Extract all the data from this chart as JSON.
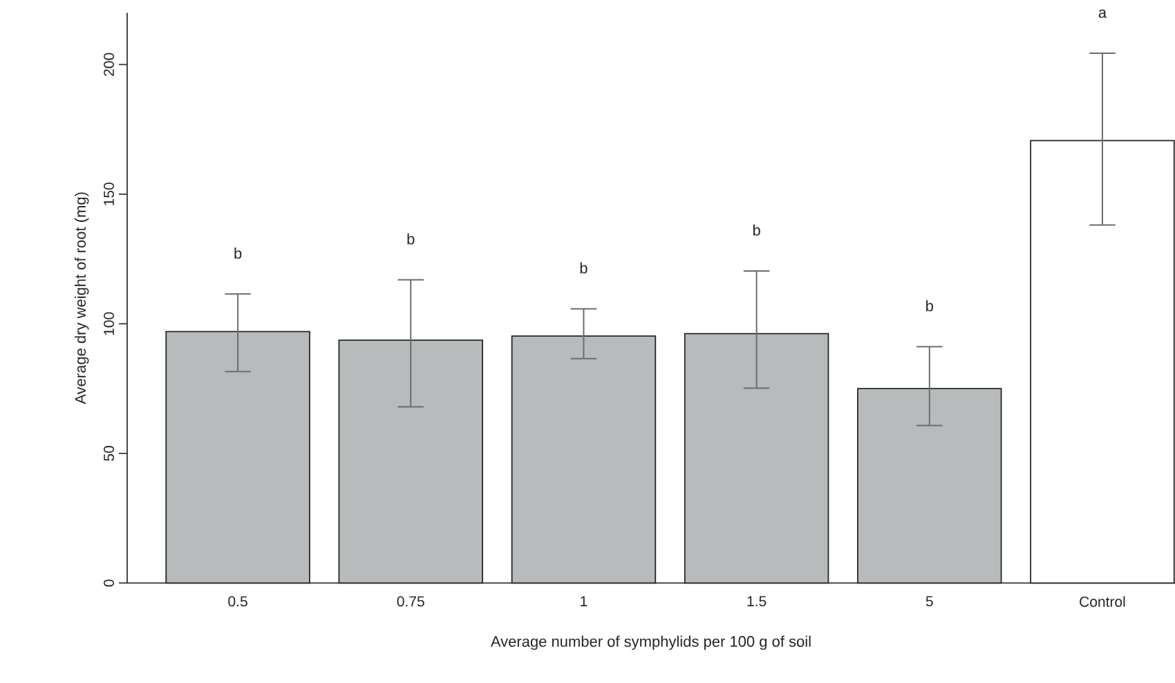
{
  "chart_data": {
    "type": "bar",
    "xlabel": "Average number of symphylids per 100 g of soil",
    "ylabel": "Average dry weight of root (mg)",
    "categories": [
      "0.5",
      "0.75",
      "1",
      "1.5",
      "5",
      "Control"
    ],
    "values": [
      97,
      93.7,
      95.3,
      96.2,
      75,
      170.7
    ],
    "errors": [
      [
        81.6,
        111.5
      ],
      [
        68,
        117
      ],
      [
        86.6,
        105.8
      ],
      [
        75.2,
        120.4
      ],
      [
        60.8,
        91.2
      ],
      [
        138.1,
        204.4
      ]
    ],
    "colors": [
      "#b8bbbc",
      "#b8bbbc",
      "#b8bbbc",
      "#b8bbbc",
      "#b8bbbc",
      "#ffffff"
    ],
    "ylim": [
      0,
      220
    ],
    "yticks": [
      0,
      50,
      100,
      150,
      200
    ],
    "grid": false,
    "annotations": [
      "b",
      "b",
      "b",
      "b",
      "b",
      "a"
    ]
  }
}
